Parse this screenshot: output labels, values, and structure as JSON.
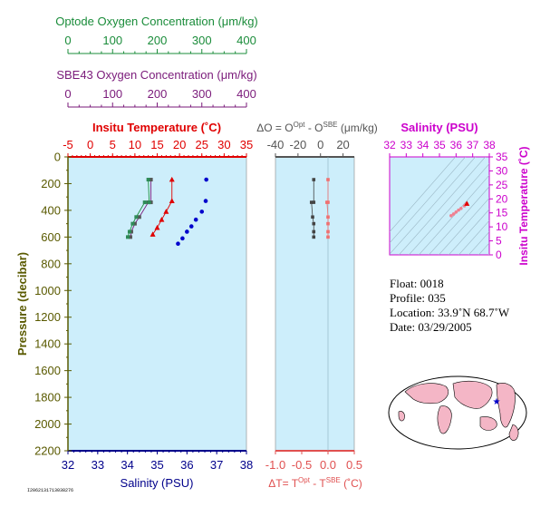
{
  "colors": {
    "optode": "#1a8c3a",
    "sbe43": "#7a1a7a",
    "temperature": "#e00000",
    "salinity_axis": "#00008b",
    "pressure": "#5a5a00",
    "delta_o": "#555555",
    "delta_t": "#e05050",
    "ts_axis": "#cc00cc",
    "panel_bg": "#cdeefb",
    "salinity_points": "#0000cc"
  },
  "top_axes": {
    "optode": {
      "label": "Optode Oxygen Concentration (μm/kg)",
      "ticks": [
        "0",
        "100",
        "200",
        "300",
        "400"
      ]
    },
    "sbe43": {
      "label": "SBE43 Oxygen Concentration (μm/kg)",
      "ticks": [
        "0",
        "100",
        "200",
        "300",
        "400"
      ]
    }
  },
  "info": {
    "float": "Float:  0018",
    "profile": "Profile:  035",
    "location": "Location:  33.9˚N  68.7˚W",
    "date": "Date:  03/29/2005"
  },
  "footer_code": "I2062131713038276",
  "chart_data": [
    {
      "type": "scatter",
      "id": "main-profile",
      "xlabel_top": "Insitu Temperature (˚C)",
      "xlabel_bottom": "Salinity (PSU)",
      "ylabel": "Pressure (decibar)",
      "temp_ticks": [
        "-5",
        "0",
        "5",
        "10",
        "15",
        "20",
        "25",
        "30",
        "35"
      ],
      "temp_lim": [
        -5,
        35
      ],
      "sal_ticks": [
        "32",
        "33",
        "34",
        "35",
        "36",
        "37",
        "38"
      ],
      "sal_lim": [
        32,
        38
      ],
      "pressure_ticks": [
        "0",
        "200",
        "400",
        "600",
        "800",
        "1000",
        "1200",
        "1400",
        "1600",
        "1800",
        "2000",
        "2200"
      ],
      "pressure_lim": [
        0,
        2200
      ],
      "series": [
        {
          "kind": "salinity",
          "marker": "circle",
          "x": [
            36.65,
            36.63,
            36.5,
            36.3,
            36.15,
            36.0,
            35.85,
            35.7
          ],
          "y": [
            170,
            330,
            410,
            470,
            520,
            560,
            610,
            650
          ]
        },
        {
          "kind": "temperature",
          "marker": "triangle",
          "x": [
            18.3,
            18.3,
            17.0,
            16.0,
            15.0,
            14.0
          ],
          "y": [
            170,
            330,
            410,
            470,
            530,
            580
          ]
        },
        {
          "kind": "oxygen_sbe43",
          "marker": "square",
          "x": [
            186,
            186,
            180,
            160,
            150,
            142,
            140
          ],
          "y": [
            170,
            340,
            340,
            450,
            500,
            560,
            600
          ]
        },
        {
          "kind": "oxygen_optode",
          "marker": "square",
          "x": [
            180,
            182,
            172,
            153,
            145,
            138,
            134
          ],
          "y": [
            170,
            340,
            340,
            450,
            500,
            560,
            600
          ]
        }
      ]
    },
    {
      "type": "scatter",
      "id": "delta-profile",
      "xlabel_top": "ΔO = O<sup>Opt</sup> - O<sup>SBE</sup> (μm/kg)",
      "xlabel_top_text": [
        "ΔO = O",
        "Opt",
        " - O",
        "SBE",
        " (μm/kg)"
      ],
      "xlabel_bottom_text": [
        "ΔT= T",
        "Opt",
        " - T",
        "SBE",
        " (˚C)"
      ],
      "do_ticks": [
        "-40",
        "-20",
        "0",
        "20"
      ],
      "do_lim": [
        -40,
        30
      ],
      "dt_ticks": [
        "-1.0",
        "-0.5",
        "0.0",
        "0.5"
      ],
      "dt_lim": [
        -1.0,
        0.5
      ],
      "pressure_lim": [
        0,
        2200
      ],
      "series": [
        {
          "kind": "delta_o",
          "marker": "square",
          "x": [
            -6,
            -6,
            -8,
            -7,
            -6,
            -6,
            -6
          ],
          "y": [
            170,
            340,
            340,
            450,
            500,
            560,
            600
          ]
        },
        {
          "kind": "delta_t",
          "marker": "square",
          "x": [
            0.0,
            0.0,
            -0.02,
            0.0,
            0.0,
            0.0,
            0.0
          ],
          "y": [
            170,
            340,
            340,
            450,
            500,
            560,
            600
          ]
        }
      ]
    },
    {
      "type": "scatter",
      "id": "ts-diagram",
      "xlabel_top": "Salinity (PSU)",
      "ylabel": "Insitu Temperature (˚C)",
      "sal_ticks": [
        "32",
        "33",
        "34",
        "35",
        "36",
        "37",
        "38"
      ],
      "sal_lim": [
        32,
        38
      ],
      "temp_ticks": [
        "0",
        "5",
        "10",
        "15",
        "20",
        "25",
        "30",
        "35"
      ],
      "temp_lim": [
        0,
        35
      ],
      "series": [
        {
          "kind": "ts_points",
          "marker": "circle",
          "x": [
            36.65,
            36.6,
            36.5,
            36.3,
            36.15,
            36.0,
            35.85,
            35.7
          ],
          "y": [
            18.3,
            18.1,
            17.5,
            16.6,
            16.0,
            15.3,
            14.6,
            14.0
          ]
        }
      ]
    }
  ]
}
